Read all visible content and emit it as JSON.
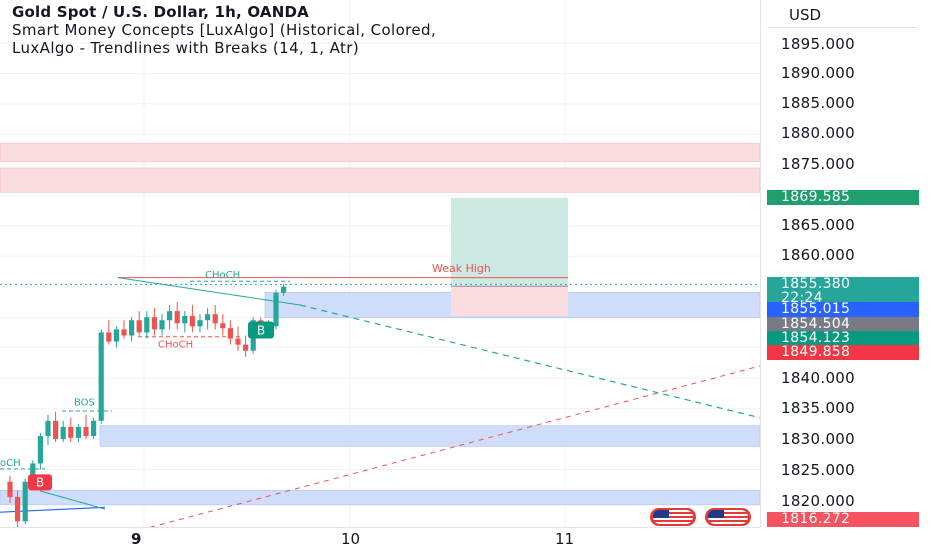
{
  "legend": {
    "title": "Gold Spot / U.S. Dollar, 1h, OANDA",
    "indicator1": "Smart Money Concepts [LuxAlgo] (Historical, Colored,",
    "indicator2": "LuxAlgo - Trendlines with Breaks (14, 1, Atr)"
  },
  "price_axis": {
    "currency": "USD",
    "ticks": [
      "1895.000",
      "1890.000",
      "1885.000",
      "1880.000",
      "1875.000",
      "1865.000",
      "1860.000",
      "1840.000",
      "1835.000",
      "1830.000",
      "1825.000",
      "1820.000"
    ],
    "badges": {
      "target": "1869.585",
      "last_price": "1855.380",
      "countdown": "22:24",
      "price_blue": "1855.015",
      "price_gray": "1854.504",
      "price_teal": "1854.123",
      "price_red": "1849.858",
      "price_bottom": "1816.272"
    }
  },
  "time_axis": {
    "labels": [
      "9",
      "10",
      "11"
    ]
  },
  "annotations": {
    "weak_high": "Weak High",
    "choch_top": "CHoCH",
    "choch_mid": "CHoCH",
    "choch_left": "oCH",
    "bos": "BOS",
    "buy_signal_1": "B",
    "buy_signal_2": "B"
  },
  "colors": {
    "bull": "#26a69a",
    "bear": "#ef5350",
    "demand_zone": "#cfdcfa",
    "supply_zone": "#fadcde",
    "target_zone": "#cde9e3"
  },
  "chart_data": {
    "type": "candlestick",
    "symbol": "Gold Spot / U.S. Dollar",
    "timeframe": "1h",
    "ylim": [
      1815,
      1898
    ],
    "candles": [
      [
        1823.0,
        1824.0,
        1819.5,
        1820.5
      ],
      [
        1820.5,
        1821.5,
        1815.5,
        1816.5
      ],
      [
        1816.5,
        1823.5,
        1816.0,
        1823.0
      ],
      [
        1823.0,
        1826.5,
        1822.0,
        1826.0
      ],
      [
        1826.0,
        1831.0,
        1825.0,
        1830.5
      ],
      [
        1830.5,
        1834.0,
        1829.0,
        1833.0
      ],
      [
        1833.0,
        1834.5,
        1829.5,
        1830.0
      ],
      [
        1830.0,
        1833.0,
        1829.5,
        1832.0
      ],
      [
        1832.0,
        1833.5,
        1829.5,
        1830.2
      ],
      [
        1830.2,
        1832.5,
        1829.5,
        1832.0
      ],
      [
        1832.0,
        1834.0,
        1830.0,
        1830.5
      ],
      [
        1830.5,
        1833.5,
        1830.0,
        1833.0
      ],
      [
        1833.0,
        1848.0,
        1832.5,
        1847.5
      ],
      [
        1847.5,
        1849.5,
        1845.5,
        1846.0
      ],
      [
        1846.0,
        1848.5,
        1845.0,
        1848.0
      ],
      [
        1848.0,
        1849.5,
        1846.5,
        1847.0
      ],
      [
        1847.0,
        1850.0,
        1846.0,
        1849.5
      ],
      [
        1849.5,
        1851.0,
        1847.0,
        1847.5
      ],
      [
        1847.5,
        1851.0,
        1846.5,
        1850.0
      ],
      [
        1850.0,
        1851.5,
        1847.0,
        1848.0
      ],
      [
        1848.0,
        1850.5,
        1847.0,
        1849.5
      ],
      [
        1849.5,
        1852.0,
        1848.0,
        1851.0
      ],
      [
        1851.0,
        1852.5,
        1848.0,
        1849.0
      ],
      [
        1849.0,
        1851.0,
        1847.5,
        1850.2
      ],
      [
        1850.2,
        1852.0,
        1847.5,
        1848.5
      ],
      [
        1848.5,
        1850.5,
        1847.5,
        1849.5
      ],
      [
        1849.5,
        1851.5,
        1848.0,
        1850.5
      ],
      [
        1850.5,
        1852.0,
        1848.0,
        1849.0
      ],
      [
        1849.0,
        1850.5,
        1847.0,
        1848.2
      ],
      [
        1848.2,
        1849.5,
        1845.5,
        1846.5
      ],
      [
        1846.5,
        1848.5,
        1844.5,
        1845.5
      ],
      [
        1845.5,
        1847.0,
        1843.5,
        1844.5
      ],
      [
        1844.5,
        1850.0,
        1844.0,
        1849.5
      ],
      [
        1849.5,
        1850.0,
        1847.0,
        1847.8
      ],
      [
        1847.8,
        1849.5,
        1847.0,
        1848.5
      ],
      [
        1848.5,
        1854.5,
        1848.0,
        1854.0
      ],
      [
        1854.0,
        1855.5,
        1853.5,
        1855.0
      ]
    ],
    "current_price": 1855.38
  }
}
